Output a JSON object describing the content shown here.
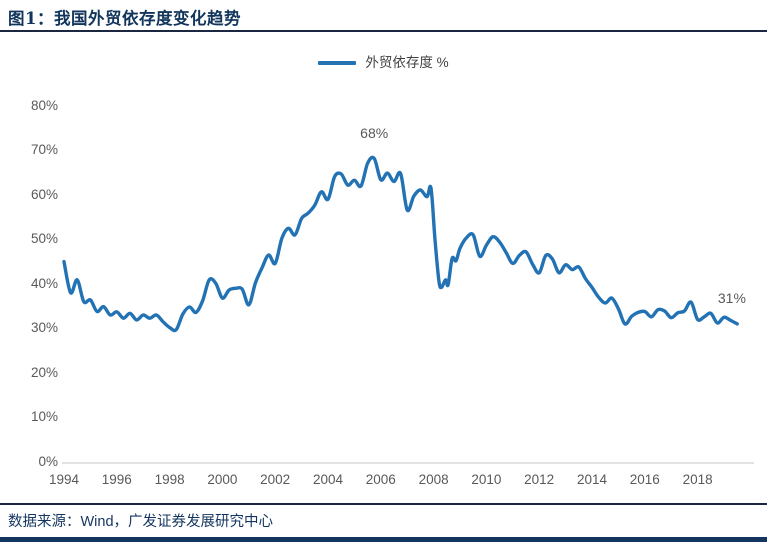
{
  "title": "图1：我国外贸依存度变化趋势",
  "legend": {
    "label": "外贸依存度 %"
  },
  "source": "数据来源：Wind，广发证券发展研究中心",
  "colors": {
    "line": "#2272B4",
    "navy": "#14355F",
    "axis_text": "#595959",
    "axis_line": "#D9D9D9",
    "annotation": "#595959",
    "rule": "#1B2740"
  },
  "chart_data": {
    "type": "line",
    "title": "外贸依存度 %",
    "legend_position": "top-center",
    "grid": false,
    "x_axis": {
      "range": [
        1994,
        2019.6
      ],
      "ticks": [
        {
          "label": "1994",
          "year": 1994
        },
        {
          "label": "1996",
          "year": 1996
        },
        {
          "label": "1998",
          "year": 1998
        },
        {
          "label": "2000",
          "year": 2000
        },
        {
          "label": "2002",
          "year": 2002
        },
        {
          "label": "2004",
          "year": 2004
        },
        {
          "label": "2006",
          "year": 2006
        },
        {
          "label": "2008",
          "year": 2008
        },
        {
          "label": "2010",
          "year": 2010
        },
        {
          "label": "2012",
          "year": 2012
        },
        {
          "label": "2014",
          "year": 2014
        },
        {
          "label": "2016",
          "year": 2016
        },
        {
          "label": "2018",
          "year": 2018
        }
      ]
    },
    "y_axis": {
      "range": [
        0,
        80
      ],
      "ticks": [
        {
          "label": "0%",
          "value": 0
        },
        {
          "label": "10%",
          "value": 10
        },
        {
          "label": "20%",
          "value": 20
        },
        {
          "label": "30%",
          "value": 30
        },
        {
          "label": "40%",
          "value": 40
        },
        {
          "label": "50%",
          "value": 50
        },
        {
          "label": "60%",
          "value": 60
        },
        {
          "label": "70%",
          "value": 70
        },
        {
          "label": "80%",
          "value": 80
        }
      ]
    },
    "annotations": [
      {
        "text": "68%",
        "year": 2005.75,
        "value": 68
      },
      {
        "text": "31%",
        "year": 2019.3,
        "value": 31
      }
    ],
    "series": [
      {
        "name": "外贸依存度 %",
        "smooth": true,
        "points": [
          [
            1994.0,
            44.8
          ],
          [
            1994.25,
            37.8
          ],
          [
            1994.5,
            40.7
          ],
          [
            1994.75,
            35.8
          ],
          [
            1995.0,
            36.2
          ],
          [
            1995.25,
            33.6
          ],
          [
            1995.5,
            34.7
          ],
          [
            1995.75,
            32.8
          ],
          [
            1996.0,
            33.5
          ],
          [
            1996.25,
            32.1
          ],
          [
            1996.5,
            33.2
          ],
          [
            1996.75,
            31.7
          ],
          [
            1997.0,
            32.8
          ],
          [
            1997.25,
            32.1
          ],
          [
            1997.5,
            32.8
          ],
          [
            1997.75,
            31.3
          ],
          [
            1998.0,
            30.0
          ],
          [
            1998.25,
            29.5
          ],
          [
            1998.5,
            33.0
          ],
          [
            1998.75,
            34.6
          ],
          [
            1999.0,
            33.4
          ],
          [
            1999.25,
            36.0
          ],
          [
            1999.5,
            40.7
          ],
          [
            1999.75,
            39.9
          ],
          [
            2000.0,
            36.6
          ],
          [
            2000.25,
            38.4
          ],
          [
            2000.5,
            38.8
          ],
          [
            2000.75,
            38.6
          ],
          [
            2001.0,
            35.1
          ],
          [
            2001.25,
            40.0
          ],
          [
            2001.5,
            43.4
          ],
          [
            2001.75,
            46.3
          ],
          [
            2002.0,
            44.4
          ],
          [
            2002.25,
            50.0
          ],
          [
            2002.5,
            52.3
          ],
          [
            2002.75,
            50.8
          ],
          [
            2003.0,
            54.5
          ],
          [
            2003.25,
            55.7
          ],
          [
            2003.5,
            57.5
          ],
          [
            2003.75,
            60.5
          ],
          [
            2004.0,
            58.8
          ],
          [
            2004.25,
            63.9
          ],
          [
            2004.5,
            64.5
          ],
          [
            2004.75,
            62.0
          ],
          [
            2005.0,
            63.1
          ],
          [
            2005.25,
            61.8
          ],
          [
            2005.5,
            66.9
          ],
          [
            2005.75,
            68.0
          ],
          [
            2006.0,
            63.2
          ],
          [
            2006.25,
            64.7
          ],
          [
            2006.5,
            62.8
          ],
          [
            2006.75,
            64.6
          ],
          [
            2007.0,
            56.4
          ],
          [
            2007.25,
            59.5
          ],
          [
            2007.5,
            60.9
          ],
          [
            2007.75,
            59.4
          ],
          [
            2007.9,
            61.3
          ],
          [
            2008.05,
            50.0
          ],
          [
            2008.2,
            40.5
          ],
          [
            2008.3,
            39.0
          ],
          [
            2008.45,
            40.7
          ],
          [
            2008.55,
            39.6
          ],
          [
            2008.7,
            45.5
          ],
          [
            2008.85,
            45.0
          ],
          [
            2009.0,
            47.8
          ],
          [
            2009.25,
            50.2
          ],
          [
            2009.5,
            50.8
          ],
          [
            2009.75,
            46.0
          ],
          [
            2010.0,
            48.5
          ],
          [
            2010.25,
            50.4
          ],
          [
            2010.5,
            49.2
          ],
          [
            2010.75,
            46.8
          ],
          [
            2011.0,
            44.4
          ],
          [
            2011.25,
            46.2
          ],
          [
            2011.5,
            47.0
          ],
          [
            2011.75,
            44.2
          ],
          [
            2012.0,
            42.3
          ],
          [
            2012.25,
            46.2
          ],
          [
            2012.5,
            45.4
          ],
          [
            2012.75,
            42.3
          ],
          [
            2013.0,
            44.1
          ],
          [
            2013.25,
            43.0
          ],
          [
            2013.5,
            43.6
          ],
          [
            2013.75,
            41.0
          ],
          [
            2014.0,
            39.0
          ],
          [
            2014.25,
            36.8
          ],
          [
            2014.5,
            35.5
          ],
          [
            2014.75,
            36.6
          ],
          [
            2015.0,
            34.2
          ],
          [
            2015.25,
            30.8
          ],
          [
            2015.5,
            32.5
          ],
          [
            2015.75,
            33.4
          ],
          [
            2016.0,
            33.6
          ],
          [
            2016.25,
            32.4
          ],
          [
            2016.5,
            34.0
          ],
          [
            2016.75,
            33.7
          ],
          [
            2017.0,
            32.2
          ],
          [
            2017.25,
            33.3
          ],
          [
            2017.5,
            33.7
          ],
          [
            2017.75,
            35.7
          ],
          [
            2018.0,
            31.8
          ],
          [
            2018.25,
            32.4
          ],
          [
            2018.5,
            33.2
          ],
          [
            2018.75,
            31.0
          ],
          [
            2019.0,
            32.3
          ],
          [
            2019.25,
            31.6
          ],
          [
            2019.5,
            30.8
          ]
        ]
      }
    ]
  }
}
